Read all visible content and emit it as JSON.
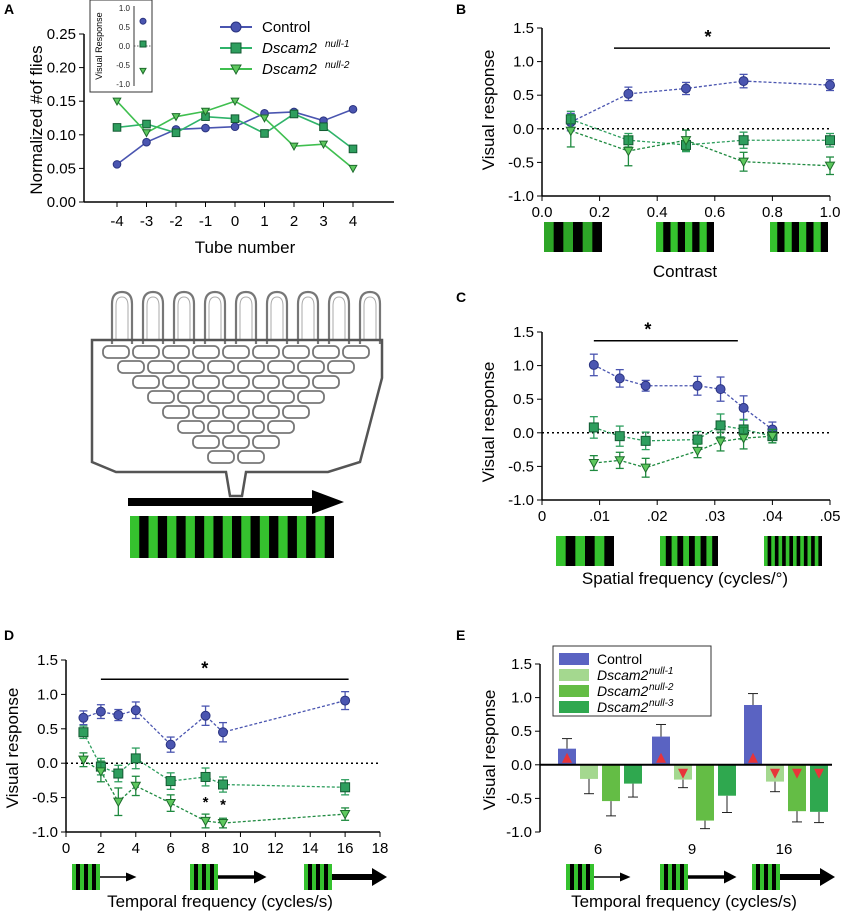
{
  "colors": {
    "control": "#4a55b0",
    "null1": "#2e9e5e",
    "null2": "#1f8a40",
    "bar_control": "#5a63c2",
    "bar_null1": "#a4d88f",
    "bar_null2": "#64bd45",
    "bar_null3": "#2fa84f",
    "arrow_red": "#e8343a",
    "stripe_green": "#35c22e"
  },
  "panels": {
    "A": "A",
    "B": "B",
    "C": "C",
    "D": "D",
    "E": "E"
  },
  "chart_data": [
    {
      "id": "A",
      "type": "line",
      "xlabel": "Tube number",
      "ylabel": "Normalized #of flies",
      "x": [
        -4,
        -3,
        -2,
        -1,
        0,
        1,
        2,
        3,
        4
      ],
      "xticks": [
        "-4",
        "-3",
        "-2",
        "-1",
        "0",
        "1",
        "2",
        "3",
        "4"
      ],
      "ylim": [
        0,
        0.25
      ],
      "yticks": [
        "0.00",
        "0.05",
        "0.10",
        "0.15",
        "0.20",
        "0.25"
      ],
      "series": [
        {
          "name": "Control",
          "values": [
            0.056,
            0.089,
            0.108,
            0.11,
            0.112,
            0.132,
            0.134,
            0.121,
            0.138
          ]
        },
        {
          "name": "Dscam2null-1",
          "values": [
            0.111,
            0.116,
            0.103,
            0.127,
            0.124,
            0.102,
            0.131,
            0.112,
            0.079
          ]
        },
        {
          "name": "Dscam2null-2",
          "values": [
            0.15,
            0.103,
            0.127,
            0.135,
            0.15,
            0.125,
            0.083,
            0.086,
            0.05
          ]
        }
      ],
      "legend": [
        {
          "base": "Control",
          "sup": ""
        },
        {
          "base": "Dscam2",
          "sup": "null-1"
        },
        {
          "base": "Dscam2",
          "sup": "null-2"
        }
      ],
      "inset": {
        "ylabel": "Visual Response",
        "yticks": [
          "1.0",
          "0.5",
          "0.0",
          "-0.5",
          "-1.0"
        ],
        "values": [
          0.62,
          0.05,
          -0.62
        ]
      }
    },
    {
      "id": "B",
      "type": "line",
      "xlabel": "Contrast",
      "ylabel": "Visual response",
      "x": [
        0.1,
        0.3,
        0.5,
        0.7,
        1.0
      ],
      "xlim": [
        0,
        1
      ],
      "xticks": [
        "0.0",
        "0.2",
        "0.4",
        "0.6",
        "0.8",
        "1.0"
      ],
      "ylim": [
        -1,
        1.5
      ],
      "yticks": [
        "1.5",
        "1.0",
        "0.5",
        "0.0",
        "-0.5",
        "-1.0"
      ],
      "sig_text": "*",
      "sig_range": [
        0.25,
        1.0
      ],
      "sig_y": 1.2,
      "series": [
        {
          "name": "Control",
          "values": [
            0.1,
            0.52,
            0.6,
            0.71,
            0.65
          ],
          "err": [
            0.13,
            0.1,
            0.09,
            0.1,
            0.08
          ]
        },
        {
          "name": "Dscam2null-1",
          "values": [
            0.14,
            -0.17,
            -0.24,
            -0.17,
            -0.17
          ],
          "err": [
            0.12,
            0.1,
            0.1,
            0.12,
            0.1
          ]
        },
        {
          "name": "Dscam2null-2",
          "values": [
            -0.03,
            -0.33,
            -0.17,
            -0.49,
            -0.55
          ],
          "err": [
            0.24,
            0.22,
            0.15,
            0.14,
            0.13
          ]
        }
      ]
    },
    {
      "id": "C",
      "type": "line",
      "xlabel": "Spatial frequency (cycles/°)",
      "ylabel": "Visual response",
      "x": [
        0.009,
        0.0135,
        0.018,
        0.027,
        0.031,
        0.035,
        0.04
      ],
      "xlim": [
        0,
        0.05
      ],
      "xticks": [
        "0",
        ".01",
        ".02",
        ".03",
        ".04",
        ".05"
      ],
      "ylim": [
        -1,
        1.5
      ],
      "yticks": [
        "1.5",
        "1.0",
        "0.5",
        "0.0",
        "-0.5",
        "-1.0"
      ],
      "sig_text": "*",
      "sig_range": [
        0.009,
        0.034
      ],
      "sig_y": 1.37,
      "series": [
        {
          "name": "Control",
          "values": [
            1.01,
            0.81,
            0.7,
            0.7,
            0.65,
            0.37,
            0.05
          ],
          "err": [
            0.16,
            0.13,
            0.08,
            0.14,
            0.18,
            0.18,
            0.11
          ]
        },
        {
          "name": "Dscam2null-1",
          "values": [
            0.08,
            -0.05,
            -0.12,
            -0.1,
            0.11,
            0.05,
            -0.05
          ],
          "err": [
            0.16,
            0.15,
            0.13,
            0.12,
            0.17,
            0.15,
            0.1
          ]
        },
        {
          "name": "Dscam2null-2",
          "values": [
            -0.45,
            -0.41,
            -0.52,
            -0.27,
            -0.13,
            -0.08,
            -0.05
          ],
          "err": [
            0.11,
            0.12,
            0.14,
            0.1,
            0.14,
            0.16,
            0.1
          ]
        }
      ]
    },
    {
      "id": "D",
      "type": "line",
      "xlabel": "Temporal frequency (cycles/s)",
      "ylabel": "Visual response",
      "x": [
        1,
        2,
        3,
        4,
        6,
        8,
        9,
        16
      ],
      "xlim": [
        0,
        18
      ],
      "xticks": [
        "0",
        "2",
        "4",
        "6",
        "8",
        "10",
        "12",
        "14",
        "16",
        "18"
      ],
      "ylim": [
        -1,
        1.5
      ],
      "yticks": [
        "1.5",
        "1.0",
        "0.5",
        "0.0",
        "-0.5",
        "-1.0"
      ],
      "sig_text": "*",
      "sig_range": [
        2,
        16.2
      ],
      "sig_y": 1.22,
      "point_stars": [
        {
          "x": 8,
          "y": -0.64,
          "text": "*"
        },
        {
          "x": 9,
          "y": -0.67,
          "text": "*"
        }
      ],
      "series": [
        {
          "name": "Control",
          "values": [
            0.66,
            0.75,
            0.7,
            0.77,
            0.27,
            0.69,
            0.45,
            0.91
          ],
          "err": [
            0.1,
            0.1,
            0.08,
            0.12,
            0.11,
            0.14,
            0.14,
            0.13
          ]
        },
        {
          "name": "Dscam2null-1",
          "values": [
            0.45,
            -0.05,
            -0.15,
            0.07,
            -0.26,
            -0.2,
            -0.31,
            -0.35
          ],
          "err": [
            0.09,
            0.12,
            0.12,
            0.15,
            0.12,
            0.13,
            0.11,
            0.11
          ]
        },
        {
          "name": "Dscam2null-2",
          "values": [
            0.05,
            -0.12,
            -0.56,
            -0.33,
            -0.58,
            -0.84,
            -0.87,
            -0.74
          ],
          "err": [
            0.1,
            0.15,
            0.2,
            0.14,
            0.12,
            0.1,
            0.07,
            0.09
          ]
        }
      ]
    },
    {
      "id": "E",
      "type": "bar",
      "xlabel": "Temporal frequency (cycles/s)",
      "ylabel": "Visual response",
      "categories": [
        "6",
        "9",
        "16"
      ],
      "ylim": [
        -1,
        1.5
      ],
      "yticks": [
        "1.5",
        "1.0",
        "0.5",
        "0.0",
        "-0.5",
        "-1.0"
      ],
      "legend": [
        {
          "base": "Control",
          "sup": ""
        },
        {
          "base": "Dscam2",
          "sup": "null-1"
        },
        {
          "base": "Dscam2",
          "sup": "null-2"
        },
        {
          "base": "Dscam2",
          "sup": "null-3"
        }
      ],
      "series": [
        {
          "name": "Control",
          "values": [
            0.24,
            0.42,
            0.89
          ],
          "err": [
            0.15,
            0.18,
            0.17
          ],
          "arrows": [
            "up",
            "up",
            "up"
          ]
        },
        {
          "name": "Dscam2null-1",
          "values": [
            -0.21,
            -0.22,
            -0.25
          ],
          "err": [
            0.22,
            0.12,
            0.15
          ],
          "arrows": [
            "none",
            "down",
            "down"
          ]
        },
        {
          "name": "Dscam2null-2",
          "values": [
            -0.54,
            -0.83,
            -0.69
          ],
          "err": [
            0.22,
            0.12,
            0.16
          ],
          "arrows": [
            "none",
            "none",
            "down"
          ]
        },
        {
          "name": "Dscam2null-3",
          "values": [
            -0.28,
            -0.46,
            -0.7
          ],
          "err": [
            0.2,
            0.25,
            0.16
          ],
          "arrows": [
            "none",
            "none",
            "down"
          ]
        }
      ]
    }
  ]
}
